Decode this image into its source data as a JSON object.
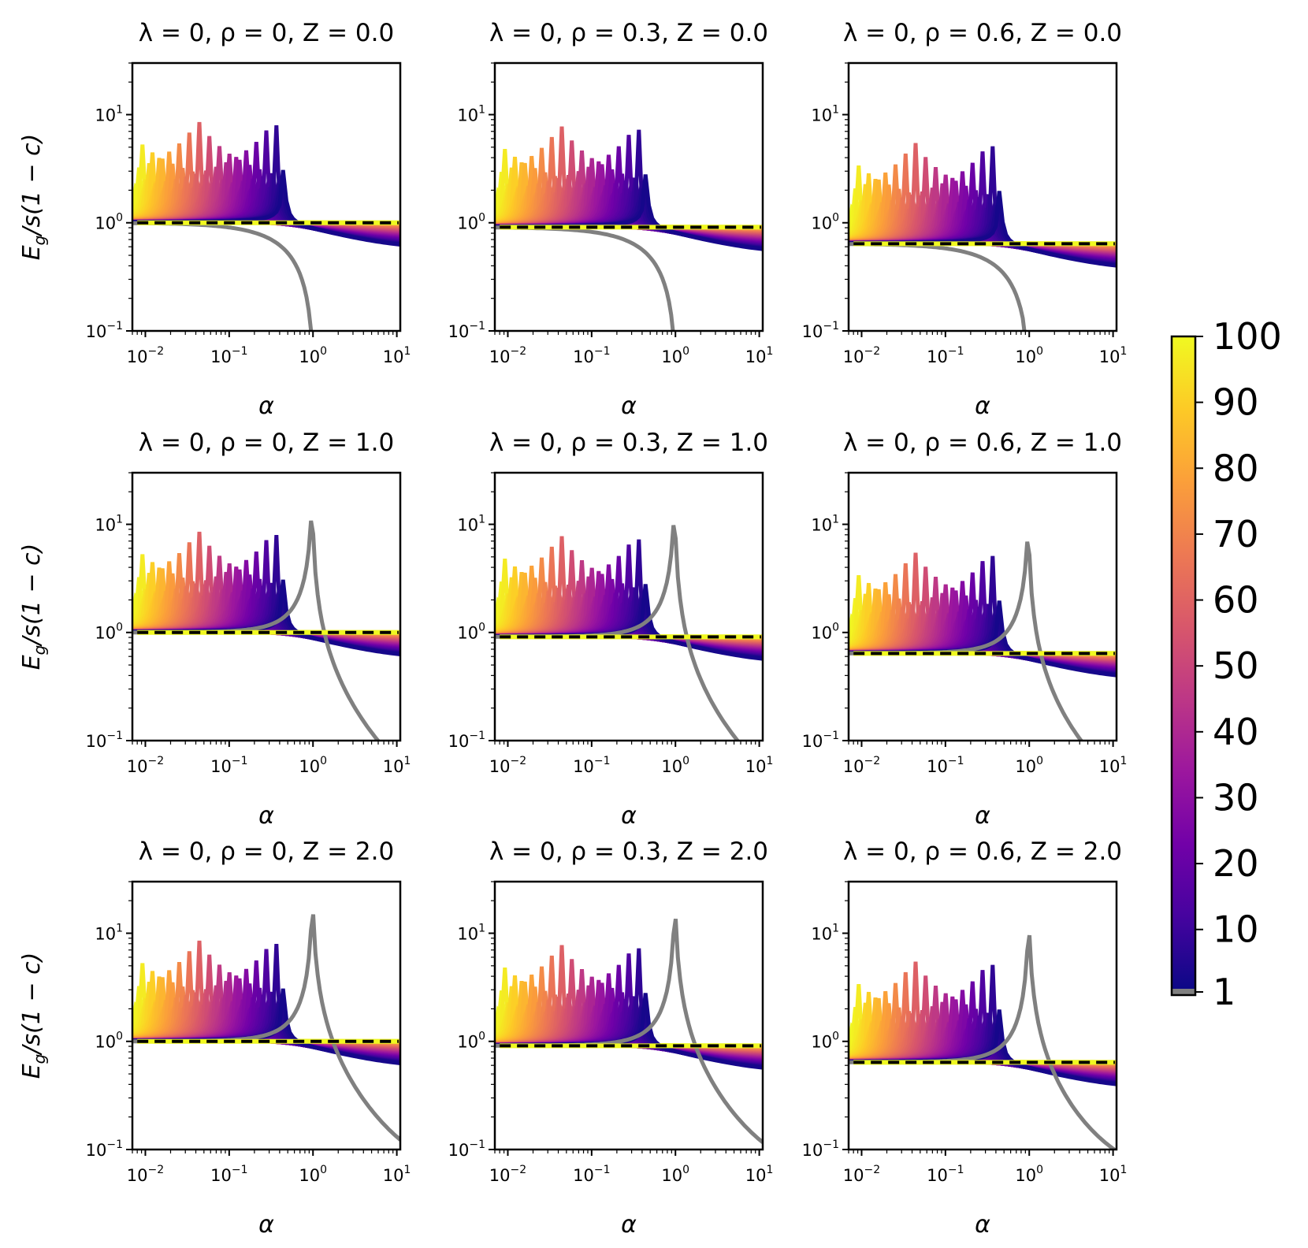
{
  "chart_data": {
    "type": "line",
    "layout": "3x3 grid of log-log line plots with shared colorbar",
    "xscale": "log",
    "yscale": "log",
    "xlim": [
      0.007,
      11
    ],
    "ylim": [
      0.1,
      30
    ],
    "xlabel": "α",
    "ylabel": "E_g/s(1 − c)",
    "ylabel_parts": {
      "main": "E",
      "sub": "g",
      "rest": "/s(1 − c)"
    },
    "x_ticks": [
      {
        "base": "10",
        "exp": "−2",
        "value": 0.01
      },
      {
        "base": "10",
        "exp": "−1",
        "value": 0.1
      },
      {
        "base": "10",
        "exp": "0",
        "value": 1
      },
      {
        "base": "10",
        "exp": "1",
        "value": 10
      }
    ],
    "y_ticks": [
      {
        "base": "10",
        "exp": "−1",
        "value": 0.1
      },
      {
        "base": "10",
        "exp": "0",
        "value": 1
      },
      {
        "base": "10",
        "exp": "1",
        "value": 10
      }
    ],
    "series_description": "One curve per colorbar value (1 to 100); gray = 1, dark blue to yellow for larger values; black/yellow dashed horizontal reference line",
    "colorbar": {
      "ticks": [
        "1",
        "10",
        "20",
        "30",
        "40",
        "50",
        "60",
        "70",
        "80",
        "90",
        "100"
      ],
      "min": 1,
      "max": 100,
      "colors": [
        "#808080",
        "#0d0887",
        "#46039f",
        "#7201a8",
        "#9c179e",
        "#bd3786",
        "#d8576b",
        "#ed7953",
        "#fb9f3a",
        "#fdca26",
        "#f0f921"
      ]
    },
    "panels": [
      {
        "title": "λ = 0, ρ = 0, Z = 0.0",
        "rho": 0,
        "Z": 0.0,
        "dashed_level": 1.0
      },
      {
        "title": "λ = 0, ρ = 0.3, Z = 0.0",
        "rho": 0.3,
        "Z": 0.0,
        "dashed_level": 0.91
      },
      {
        "title": "λ = 0, ρ = 0.6, Z = 0.0",
        "rho": 0.6,
        "Z": 0.0,
        "dashed_level": 0.64
      },
      {
        "title": "λ = 0, ρ = 0, Z = 1.0",
        "rho": 0,
        "Z": 1.0,
        "dashed_level": 1.0
      },
      {
        "title": "λ = 0, ρ = 0.3, Z = 1.0",
        "rho": 0.3,
        "Z": 1.0,
        "dashed_level": 0.91
      },
      {
        "title": "λ = 0, ρ = 0.6, Z = 1.0",
        "rho": 0.6,
        "Z": 1.0,
        "dashed_level": 0.64
      },
      {
        "title": "λ = 0, ρ = 0, Z = 2.0",
        "rho": 0,
        "Z": 2.0,
        "dashed_level": 1.0
      },
      {
        "title": "λ = 0, ρ = 0.3, Z = 2.0",
        "rho": 0.3,
        "Z": 2.0,
        "dashed_level": 0.91
      },
      {
        "title": "λ = 0, ρ = 0.6, Z = 2.0",
        "rho": 0.6,
        "Z": 2.0,
        "dashed_level": 0.64
      }
    ]
  }
}
